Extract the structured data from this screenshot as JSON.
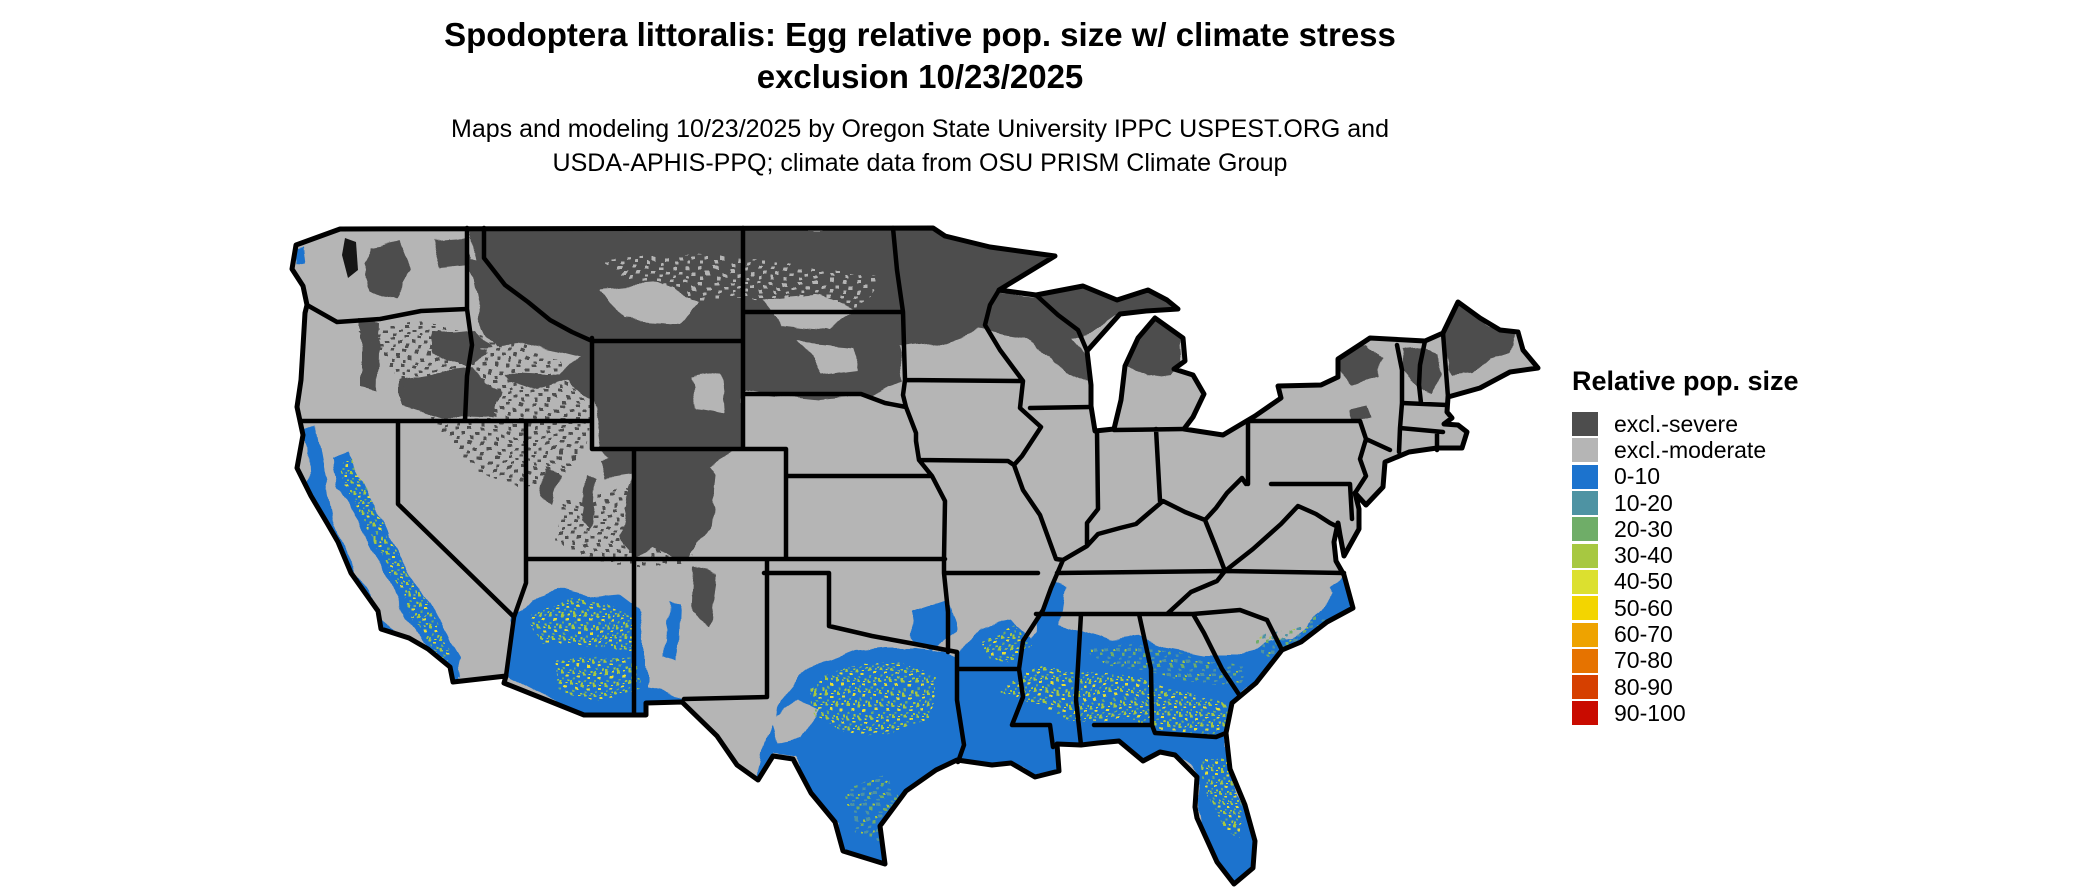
{
  "title": {
    "line1": "Spodoptera littoralis: Egg relative pop. size w/ climate stress",
    "line2": "exclusion 10/23/2025"
  },
  "subtitle": {
    "line1": "Maps and modeling 10/23/2025 by Oregon State University IPPC USPEST.ORG and",
    "line2": "USDA-APHIS-PPQ; climate data from OSU PRISM Climate Group"
  },
  "legend": {
    "title": "Relative pop. size",
    "items": [
      {
        "label": "excl.-severe",
        "color": "#4D4D4D",
        "key": "excluded_severe"
      },
      {
        "label": "excl.-moderate",
        "color": "#B5B5B5",
        "key": "excluded_moderate"
      },
      {
        "label": "0-10",
        "color": "#1C73CE",
        "key": "pop_0_10"
      },
      {
        "label": "10-20",
        "color": "#4E93A3",
        "key": "pop_10_20"
      },
      {
        "label": "20-30",
        "color": "#6FAD68",
        "key": "pop_20_30"
      },
      {
        "label": "30-40",
        "color": "#A7C841",
        "key": "pop_30_40"
      },
      {
        "label": "40-50",
        "color": "#DCE02F",
        "key": "pop_40_50"
      },
      {
        "label": "50-60",
        "color": "#F3D500",
        "key": "pop_50_60"
      },
      {
        "label": "60-70",
        "color": "#EEA300",
        "key": "pop_60_70"
      },
      {
        "label": "70-80",
        "color": "#E67300",
        "key": "pop_70_80"
      },
      {
        "label": "80-90",
        "color": "#D64000",
        "key": "pop_80_90"
      },
      {
        "label": "90-100",
        "color": "#C90B00",
        "key": "pop_90_100"
      }
    ]
  },
  "map": {
    "region": "Continental United States",
    "border_color": "#000000",
    "background": "#FFFFFF",
    "palette": {
      "excluded_severe": "#4D4D4D",
      "excluded_moderate": "#B5B5B5",
      "pop_0_10": "#1C73CE",
      "pop_10_20": "#4E93A3",
      "pop_20_30": "#6FAD68",
      "pop_30_40": "#A7C841",
      "pop_40_50": "#DCE02F",
      "pop_50_60": "#F3D500",
      "pop_60_70": "#EEA300",
      "pop_70_80": "#E67300",
      "pop_80_90": "#D64000",
      "pop_90_100": "#C90B00"
    }
  }
}
